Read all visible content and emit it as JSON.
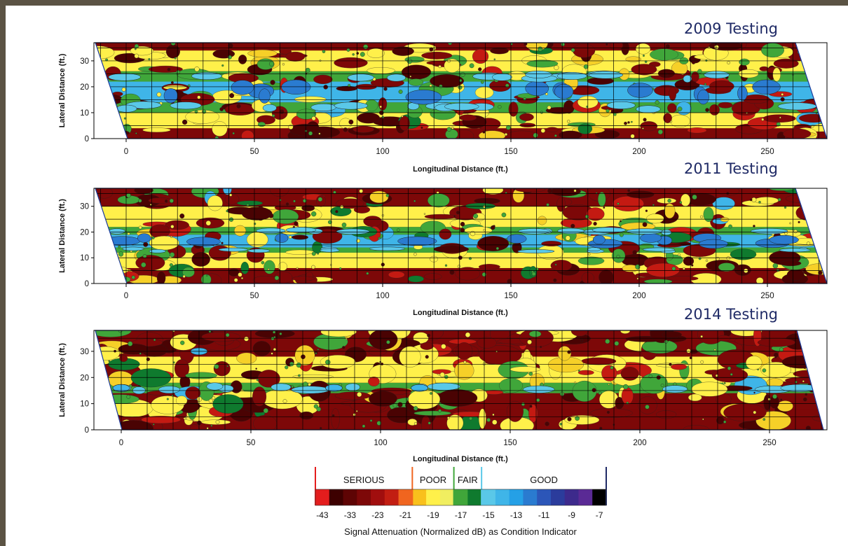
{
  "chart_data": [
    {
      "type": "heatmap",
      "title": "2009 Testing",
      "xlabel": "Longitudinal Distance (ft.)",
      "ylabel": "Lateral Distance (ft.)",
      "xticks": [
        0,
        50,
        100,
        150,
        200,
        250
      ],
      "yticks": [
        0,
        10,
        20,
        30
      ],
      "xlim": [
        -12,
        273
      ],
      "ylim": [
        0,
        37
      ],
      "grid": true,
      "condition_profile_by_lateral_ft": {
        "0-4": "serious",
        "4-10": "poor",
        "10-14": "fair",
        "14-22": "good",
        "22-26": "fair",
        "26-34": "poor",
        "34-37": "serious"
      }
    },
    {
      "type": "heatmap",
      "title": "2011 Testing",
      "xlabel": "Longitudinal Distance (ft.)",
      "ylabel": "Lateral Distance (ft.)",
      "xticks": [
        0,
        50,
        100,
        150,
        200,
        250
      ],
      "yticks": [
        0,
        10,
        20,
        30
      ],
      "xlim": [
        -12,
        273
      ],
      "ylim": [
        0,
        37
      ],
      "grid": true,
      "condition_profile_by_lateral_ft": {
        "0-6": "serious",
        "6-12": "poor",
        "12-14": "fair",
        "14-19": "good",
        "19-22": "fair",
        "22-30": "poor",
        "30-37": "serious"
      }
    },
    {
      "type": "heatmap",
      "title": "2014 Testing",
      "xlabel": "Longitudinal Distance (ft.)",
      "ylabel": "Lateral Distance (ft.)",
      "xticks": [
        0,
        50,
        100,
        150,
        200,
        250
      ],
      "yticks": [
        0,
        10,
        20,
        30
      ],
      "xlim": [
        -12,
        273
      ],
      "ylim": [
        0,
        38
      ],
      "grid": true,
      "condition_profile_by_lateral_ft": {
        "0-8": "serious",
        "8-14": "serious",
        "14-18": "fair",
        "18-28": "poor",
        "28-38": "serious"
      }
    }
  ],
  "legend": {
    "title": "Signal Attenuation (Normalized dB) as Condition Indicator",
    "categories": [
      "SERIOUS",
      "POOR",
      "FAIR",
      "GOOD"
    ],
    "tick_labels": [
      "-43",
      "-33",
      "-23",
      "-21",
      "-19",
      "-17",
      "-15",
      "-13",
      "-11",
      "-9",
      "-7"
    ],
    "colors": [
      "#e41d1d",
      "#3d0000",
      "#5e0404",
      "#7d0808",
      "#a10e0e",
      "#c21e12",
      "#f0651f",
      "#f9c01c",
      "#fff04a",
      "#f0ee60",
      "#40a63a",
      "#0f7a2e",
      "#5ac8e8",
      "#3fb5e8",
      "#25a0e6",
      "#2a7bd0",
      "#2c56b8",
      "#2b3c9c",
      "#3d2a8c",
      "#5a2a95",
      "#000000"
    ],
    "category_colors": {
      "serious": "#7d0808",
      "poor": "#fff04a",
      "fair": "#40a63a",
      "good": "#3fb5e8"
    }
  }
}
